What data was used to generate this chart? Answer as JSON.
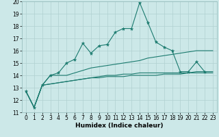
{
  "xlabel": "Humidex (Indice chaleur)",
  "background_color": "#cce8e8",
  "grid_color": "#b0d0d0",
  "line_color": "#1a7a6e",
  "x": [
    0,
    1,
    2,
    3,
    4,
    5,
    6,
    7,
    8,
    9,
    10,
    11,
    12,
    13,
    14,
    15,
    16,
    17,
    18,
    19,
    20,
    21,
    22,
    23
  ],
  "line1": [
    12.7,
    11.4,
    13.2,
    14.0,
    14.2,
    15.0,
    15.3,
    16.6,
    15.8,
    16.4,
    16.5,
    17.5,
    17.8,
    17.8,
    19.9,
    18.3,
    16.7,
    16.3,
    16.0,
    14.3,
    14.3,
    15.1,
    14.3,
    null
  ],
  "line2": [
    12.7,
    11.4,
    13.2,
    14.0,
    14.0,
    14.0,
    14.2,
    14.4,
    14.6,
    14.7,
    14.8,
    14.9,
    15.0,
    15.1,
    15.2,
    15.4,
    15.5,
    15.6,
    15.7,
    15.8,
    15.9,
    16.0,
    16.0,
    16.0
  ],
  "line3": [
    12.7,
    11.4,
    13.2,
    13.3,
    13.4,
    13.5,
    13.6,
    13.7,
    13.8,
    13.9,
    14.0,
    14.0,
    14.1,
    14.1,
    14.2,
    14.2,
    14.2,
    14.2,
    14.2,
    14.2,
    14.2,
    14.3,
    14.3,
    14.3
  ],
  "line4": [
    12.7,
    11.4,
    13.2,
    13.3,
    13.4,
    13.5,
    13.6,
    13.7,
    13.8,
    13.8,
    13.9,
    13.9,
    13.9,
    14.0,
    14.0,
    14.0,
    14.0,
    14.1,
    14.1,
    14.1,
    14.2,
    14.2,
    14.2,
    14.2
  ],
  "ylim": [
    11,
    20
  ],
  "xlim_min": -0.5,
  "xlim_max": 23.5,
  "yticks": [
    11,
    12,
    13,
    14,
    15,
    16,
    17,
    18,
    19,
    20
  ],
  "xticks": [
    0,
    1,
    2,
    3,
    4,
    5,
    6,
    7,
    8,
    9,
    10,
    11,
    12,
    13,
    14,
    15,
    16,
    17,
    18,
    19,
    20,
    21,
    22,
    23
  ],
  "tick_fontsize": 5.5,
  "xlabel_fontsize": 6.5,
  "linewidth": 0.8,
  "markersize": 2.0
}
